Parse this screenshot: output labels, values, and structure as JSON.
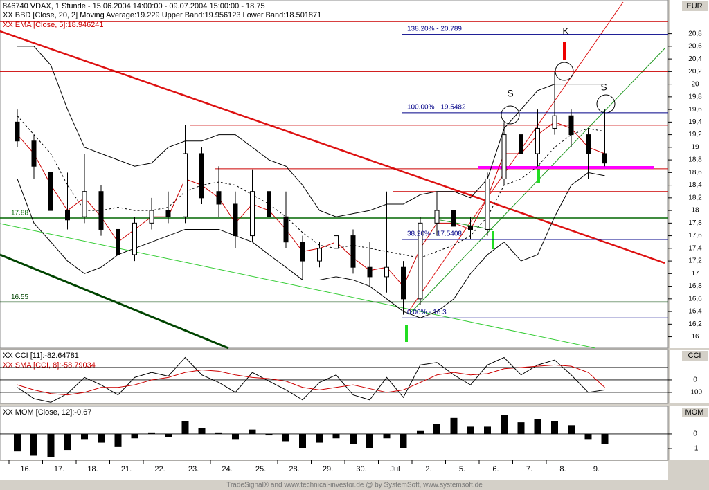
{
  "chart_data": [
    {
      "type": "candlestick",
      "title": "846740 VDAX, 1 Stunde - 15.06.2004 14:00:00 - 09.07.2004 15:00:00 - 18.75",
      "indicator_labels": [
        "XX BBD [Close, 20, 2] Moving Average:19.229 Upper Band:19.956123 Lower Band:18.501871",
        "XX EMA [Close, 5]:18.946241"
      ],
      "axis_label": "EUR",
      "xticks": [
        "16.",
        "17.",
        "18.",
        "21.",
        "22.",
        "23.",
        "24.",
        "25.",
        "28.",
        "29.",
        "30.",
        "Jul",
        "2.",
        "5.",
        "6.",
        "7.",
        "8.",
        "9."
      ],
      "open": [
        19.4,
        19.1,
        18.6,
        18.0,
        17.9,
        18.3,
        17.7,
        17.3,
        17.8,
        18.0,
        17.9,
        18.9,
        18.3,
        18.1,
        17.6,
        18.3,
        17.9,
        17.5,
        17.2,
        17.4,
        17.6,
        17.1,
        16.95,
        17.1,
        16.6,
        17.8,
        18.0,
        17.75,
        17.7,
        18.5,
        19.2,
        18.9,
        19.3,
        19.5,
        19.2,
        18.9
      ],
      "high": [
        19.6,
        19.2,
        18.7,
        18.6,
        18.9,
        18.4,
        17.9,
        17.9,
        18.2,
        18.3,
        19.35,
        19.0,
        18.7,
        18.3,
        18.65,
        18.4,
        18.3,
        17.6,
        17.5,
        17.7,
        17.7,
        17.5,
        18.3,
        17.2,
        17.9,
        18.3,
        18.3,
        17.9,
        18.6,
        19.4,
        19.35,
        19.6,
        20.2,
        19.6,
        19.3,
        19.6
      ],
      "low": [
        19.0,
        18.5,
        17.9,
        17.7,
        17.8,
        17.6,
        17.2,
        17.2,
        17.7,
        17.8,
        17.8,
        18.1,
        17.9,
        17.4,
        17.5,
        17.6,
        17.4,
        16.9,
        17.1,
        17.3,
        17.0,
        16.8,
        16.7,
        16.35,
        16.5,
        17.6,
        17.6,
        17.55,
        17.6,
        18.4,
        18.7,
        18.7,
        19.2,
        19.0,
        18.5,
        18.7
      ],
      "close": [
        19.1,
        18.7,
        18.0,
        17.85,
        18.3,
        17.7,
        17.3,
        17.8,
        18.0,
        17.9,
        18.9,
        18.2,
        18.1,
        17.6,
        18.3,
        17.9,
        17.5,
        17.2,
        17.4,
        17.6,
        17.1,
        16.95,
        17.1,
        16.6,
        17.8,
        18.0,
        17.75,
        17.7,
        18.5,
        19.2,
        18.9,
        19.3,
        19.5,
        19.2,
        18.9,
        18.75
      ],
      "series": [
        {
          "color": "#000000",
          "values": [
            20.6,
            20.6,
            20.3,
            19.6,
            19.0,
            18.9,
            18.8,
            18.7,
            18.75,
            19.0,
            19.1,
            19.1,
            19.2,
            19.2,
            19.0,
            18.8,
            18.7,
            18.4,
            18.0,
            17.9,
            17.95,
            18.0,
            18.1,
            18.1,
            18.25,
            18.3,
            18.3,
            18.2,
            18.5,
            19.3,
            19.6,
            19.9,
            20.0,
            20.0,
            20.0,
            20.0
          ]
        },
        {
          "color": "#000000",
          "values": [
            18.5,
            17.8,
            17.5,
            17.2,
            17.0,
            17.1,
            17.3,
            17.4,
            17.5,
            17.6,
            17.7,
            17.7,
            17.7,
            17.6,
            17.5,
            17.3,
            17.1,
            16.9,
            16.9,
            16.95,
            16.9,
            16.8,
            16.6,
            16.4,
            16.3,
            16.4,
            16.6,
            17.0,
            17.3,
            17.5,
            17.2,
            17.3,
            17.9,
            18.4,
            18.6,
            18.55
          ]
        },
        {
          "color": "#000000",
          "dashed": true,
          "values": [
            19.5,
            19.2,
            18.9,
            18.4,
            18.0,
            18.0,
            18.05,
            18.0,
            18.0,
            18.05,
            18.3,
            18.4,
            18.45,
            18.4,
            18.25,
            18.1,
            17.9,
            17.65,
            17.45,
            17.4,
            17.45,
            17.4,
            17.35,
            17.3,
            17.25,
            17.35,
            17.45,
            17.6,
            17.9,
            18.4,
            18.5,
            18.7,
            19.0,
            19.2,
            19.3,
            19.25
          ]
        },
        {
          "color": "#cc0000",
          "values": [
            19.2,
            18.9,
            18.4,
            18.0,
            18.2,
            17.9,
            17.5,
            17.7,
            17.9,
            17.9,
            18.5,
            18.4,
            18.2,
            17.8,
            18.1,
            18.0,
            17.7,
            17.35,
            17.4,
            17.5,
            17.25,
            17.05,
            17.1,
            16.8,
            17.4,
            17.8,
            17.8,
            17.7,
            18.2,
            18.9,
            18.9,
            19.2,
            19.4,
            19.3,
            19.0,
            18.9
          ]
        }
      ],
      "levels": [
        {
          "value": 20.99,
          "color": "#cc0000"
        },
        {
          "value": 20.2,
          "color": "#cc0000"
        },
        {
          "value": 19.35,
          "color": "#cc0000"
        },
        {
          "value": 18.66,
          "color": "#cc0000"
        },
        {
          "value": 18.3,
          "color": "#cc0000"
        },
        {
          "value": 17.88,
          "color": "#006600",
          "labeled": true
        },
        {
          "value": 16.55,
          "color": "#004400",
          "labeled": true
        }
      ],
      "fibonacci": [
        {
          "value": 20.789,
          "label": "138.20% - 20.789"
        },
        {
          "value": 19.5482,
          "label": "100.00% - 19.5482"
        },
        {
          "value": 17.5408,
          "label": "38.20% - 17.5408"
        },
        {
          "value": 16.3,
          "label": "0.00% - 16.3"
        }
      ],
      "neckline": {
        "value": 18.68,
        "color": "#ff00ff"
      },
      "pattern_labels": [
        "S",
        "K",
        "S"
      ],
      "ylim": [
        15.82,
        21.3
      ],
      "yticks": [
        16,
        {
          "value": 16.2,
          "label": "16,2"
        },
        {
          "value": 16.4,
          "label": "16,4"
        },
        {
          "value": 16.6,
          "label": "16,6"
        },
        {
          "value": 16.8,
          "label": "16,8"
        },
        17,
        {
          "value": 17.2,
          "label": "17,2"
        },
        {
          "value": 17.4,
          "label": "17,4"
        },
        {
          "value": 17.6,
          "label": "17,6"
        },
        {
          "value": 17.8,
          "label": "17,8"
        },
        18,
        {
          "value": 18.2,
          "label": "18,2"
        },
        {
          "value": 18.4,
          "label": "18,4"
        },
        {
          "value": 18.6,
          "label": "18,6"
        },
        {
          "value": 18.8,
          "label": "18,8"
        },
        19,
        {
          "value": 19.2,
          "label": "19,2"
        },
        {
          "value": 19.4,
          "label": "19,4"
        },
        {
          "value": 19.6,
          "label": "19,6"
        },
        {
          "value": 19.8,
          "label": "19,8"
        },
        20,
        {
          "value": 20.2,
          "label": "20,2"
        },
        {
          "value": 20.4,
          "label": "20,4"
        },
        {
          "value": 20.6,
          "label": "20,6"
        },
        {
          "value": 20.8,
          "label": "20,8"
        }
      ]
    },
    {
      "type": "line",
      "indicator_labels": [
        "XX CCI [11]:-82.64781",
        "XX SMA [CCI, 8]:-58.79034"
      ],
      "axis_label": "CCI",
      "series": [
        {
          "color": "#000000",
          "values": [
            -60,
            -150,
            -180,
            -110,
            20,
            -40,
            -120,
            20,
            60,
            30,
            180,
            40,
            -20,
            -100,
            60,
            -10,
            -80,
            -160,
            -20,
            40,
            -120,
            -160,
            20,
            -140,
            120,
            140,
            40,
            -40,
            120,
            180,
            40,
            120,
            160,
            40,
            -100,
            -80
          ]
        },
        {
          "color": "#cc0000",
          "values": [
            -40,
            -80,
            -110,
            -120,
            -100,
            -60,
            -60,
            -40,
            0,
            20,
            60,
            80,
            70,
            40,
            20,
            10,
            -10,
            -60,
            -80,
            -60,
            -40,
            -70,
            -100,
            -80,
            -20,
            40,
            60,
            40,
            50,
            90,
            100,
            110,
            120,
            110,
            60,
            -60
          ]
        }
      ],
      "grid_levels": [
        100,
        0,
        -100
      ],
      "ylim": [
        -189,
        244
      ],
      "yticks": [
        0,
        -100
      ]
    },
    {
      "type": "bar",
      "indicator_labels": [
        "XX MOM [Close, 12]:-0.67"
      ],
      "axis_label": "MOM",
      "color": "#000000",
      "values": [
        -1.2,
        -1.5,
        -1.6,
        -1.1,
        -0.4,
        -0.6,
        -0.9,
        -0.3,
        0.1,
        -0.2,
        0.9,
        0.4,
        0.1,
        -0.4,
        0.3,
        -0.1,
        -0.5,
        -1.0,
        -0.6,
        -0.3,
        -0.7,
        -1.0,
        -0.3,
        -1.0,
        0.2,
        0.7,
        1.1,
        0.5,
        0.5,
        1.3,
        0.8,
        1.0,
        0.9,
        0.6,
        -0.4,
        -0.67
      ],
      "ylim": [
        -1.81,
        1.9
      ],
      "yticks": [
        0,
        -1
      ]
    }
  ],
  "footer": "TradeSignal® and www.technical-investor.de @ by SystemSoft, www.systemsoft.de"
}
